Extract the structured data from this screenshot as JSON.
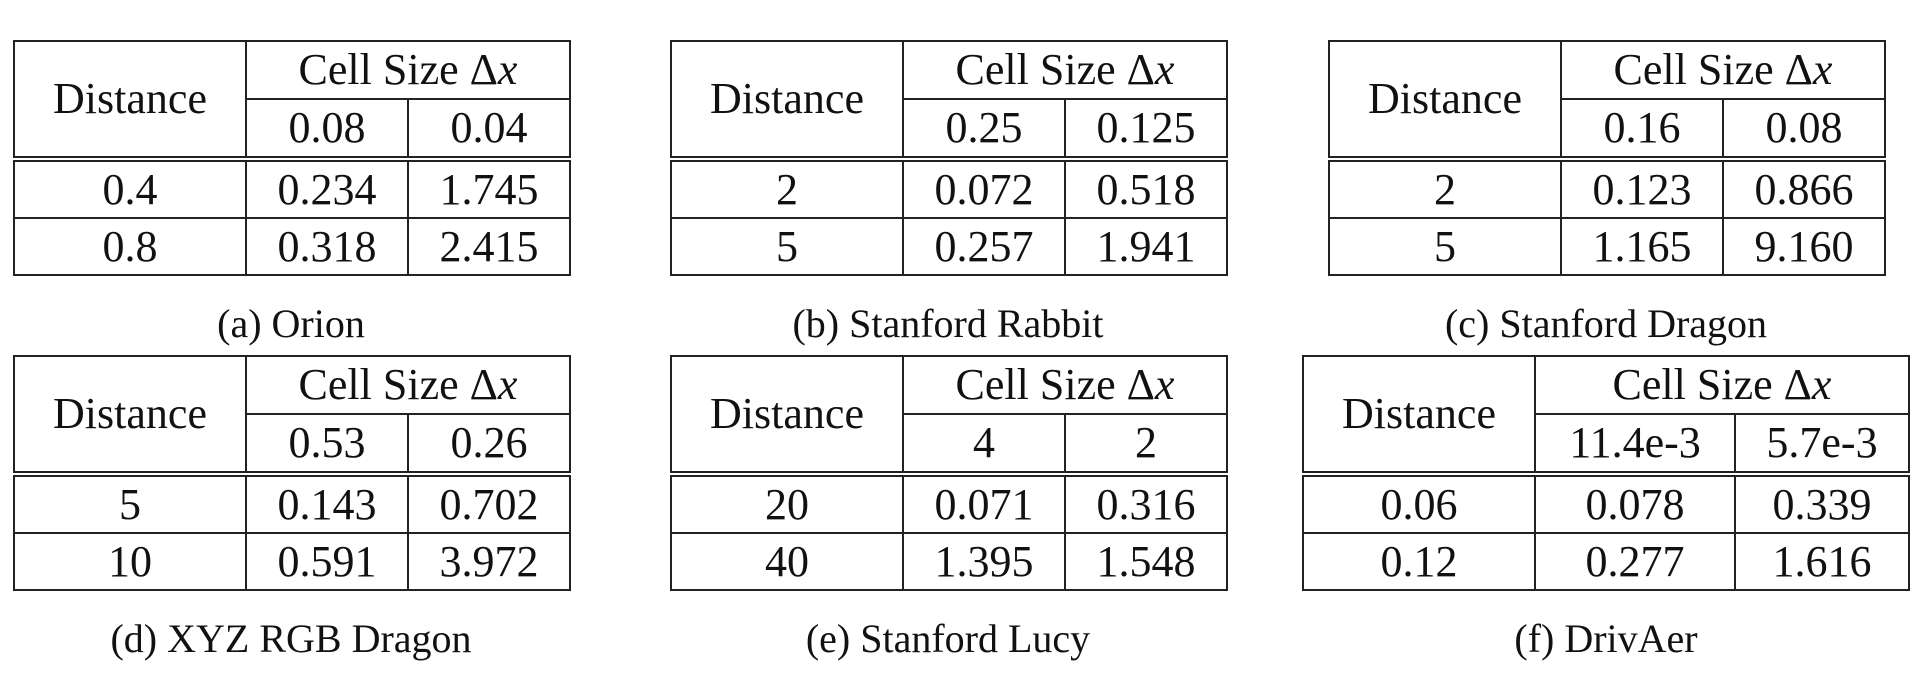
{
  "tables": [
    {
      "caption": "(a) Orion",
      "header": {
        "distance": "Distance",
        "cell_size": "Cell Size Δ",
        "cell_size_var": "x",
        "sizes": [
          "0.08",
          "0.04"
        ]
      },
      "rows": [
        [
          "0.4",
          "0.234",
          "1.745"
        ],
        [
          "0.8",
          "0.318",
          "2.415"
        ]
      ]
    },
    {
      "caption": "(b) Stanford Rabbit",
      "header": {
        "distance": "Distance",
        "cell_size": "Cell Size Δ",
        "cell_size_var": "x",
        "sizes": [
          "0.25",
          "0.125"
        ]
      },
      "rows": [
        [
          "2",
          "0.072",
          "0.518"
        ],
        [
          "5",
          "0.257",
          "1.941"
        ]
      ]
    },
    {
      "caption": "(c) Stanford Dragon",
      "header": {
        "distance": "Distance",
        "cell_size": "Cell Size Δ",
        "cell_size_var": "x",
        "sizes": [
          "0.16",
          "0.08"
        ]
      },
      "rows": [
        [
          "2",
          "0.123",
          "0.866"
        ],
        [
          "5",
          "1.165",
          "9.160"
        ]
      ]
    },
    {
      "caption": "(d) XYZ RGB Dragon",
      "header": {
        "distance": "Distance",
        "cell_size": "Cell Size Δ",
        "cell_size_var": "x",
        "sizes": [
          "0.53",
          "0.26"
        ]
      },
      "rows": [
        [
          "5",
          "0.143",
          "0.702"
        ],
        [
          "10",
          "0.591",
          "3.972"
        ]
      ]
    },
    {
      "caption": "(e) Stanford Lucy",
      "header": {
        "distance": "Distance",
        "cell_size": "Cell Size Δ",
        "cell_size_var": "x",
        "sizes": [
          "4",
          "2"
        ]
      },
      "rows": [
        [
          "20",
          "0.071",
          "0.316"
        ],
        [
          "40",
          "1.395",
          "1.548"
        ]
      ]
    },
    {
      "caption": "(f) DrivAer",
      "header": {
        "distance": "Distance",
        "cell_size": "Cell Size Δ",
        "cell_size_var": "x",
        "sizes": [
          "11.4e-3",
          "5.7e-3"
        ]
      },
      "rows": [
        [
          "0.06",
          "0.078",
          "0.339"
        ],
        [
          "0.12",
          "0.277",
          "1.616"
        ]
      ]
    }
  ]
}
